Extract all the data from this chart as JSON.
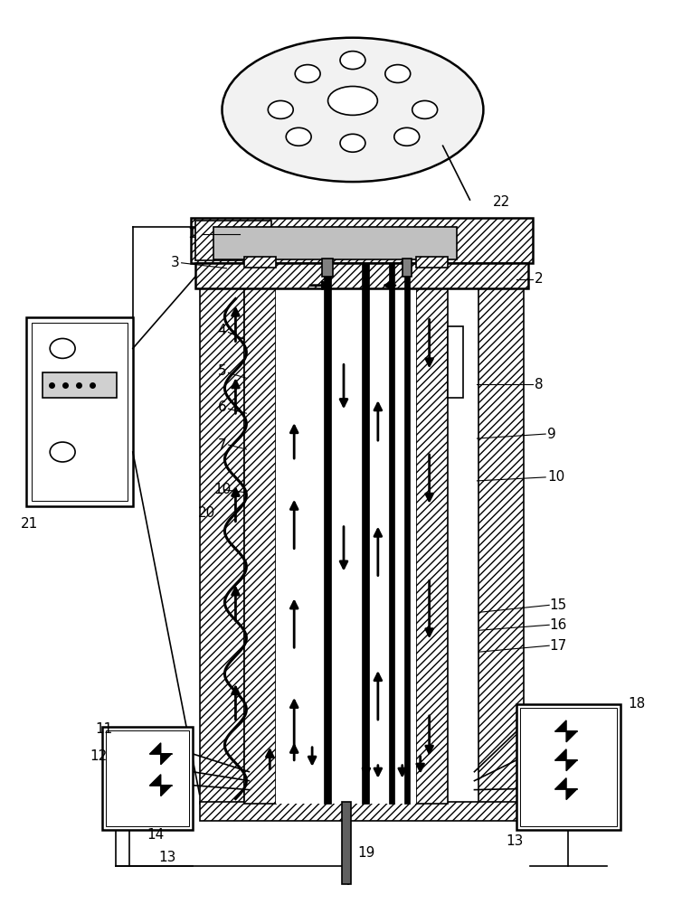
{
  "bg_color": "#ffffff",
  "line_color": "#000000",
  "fig_width": 7.54,
  "fig_height": 10.0
}
